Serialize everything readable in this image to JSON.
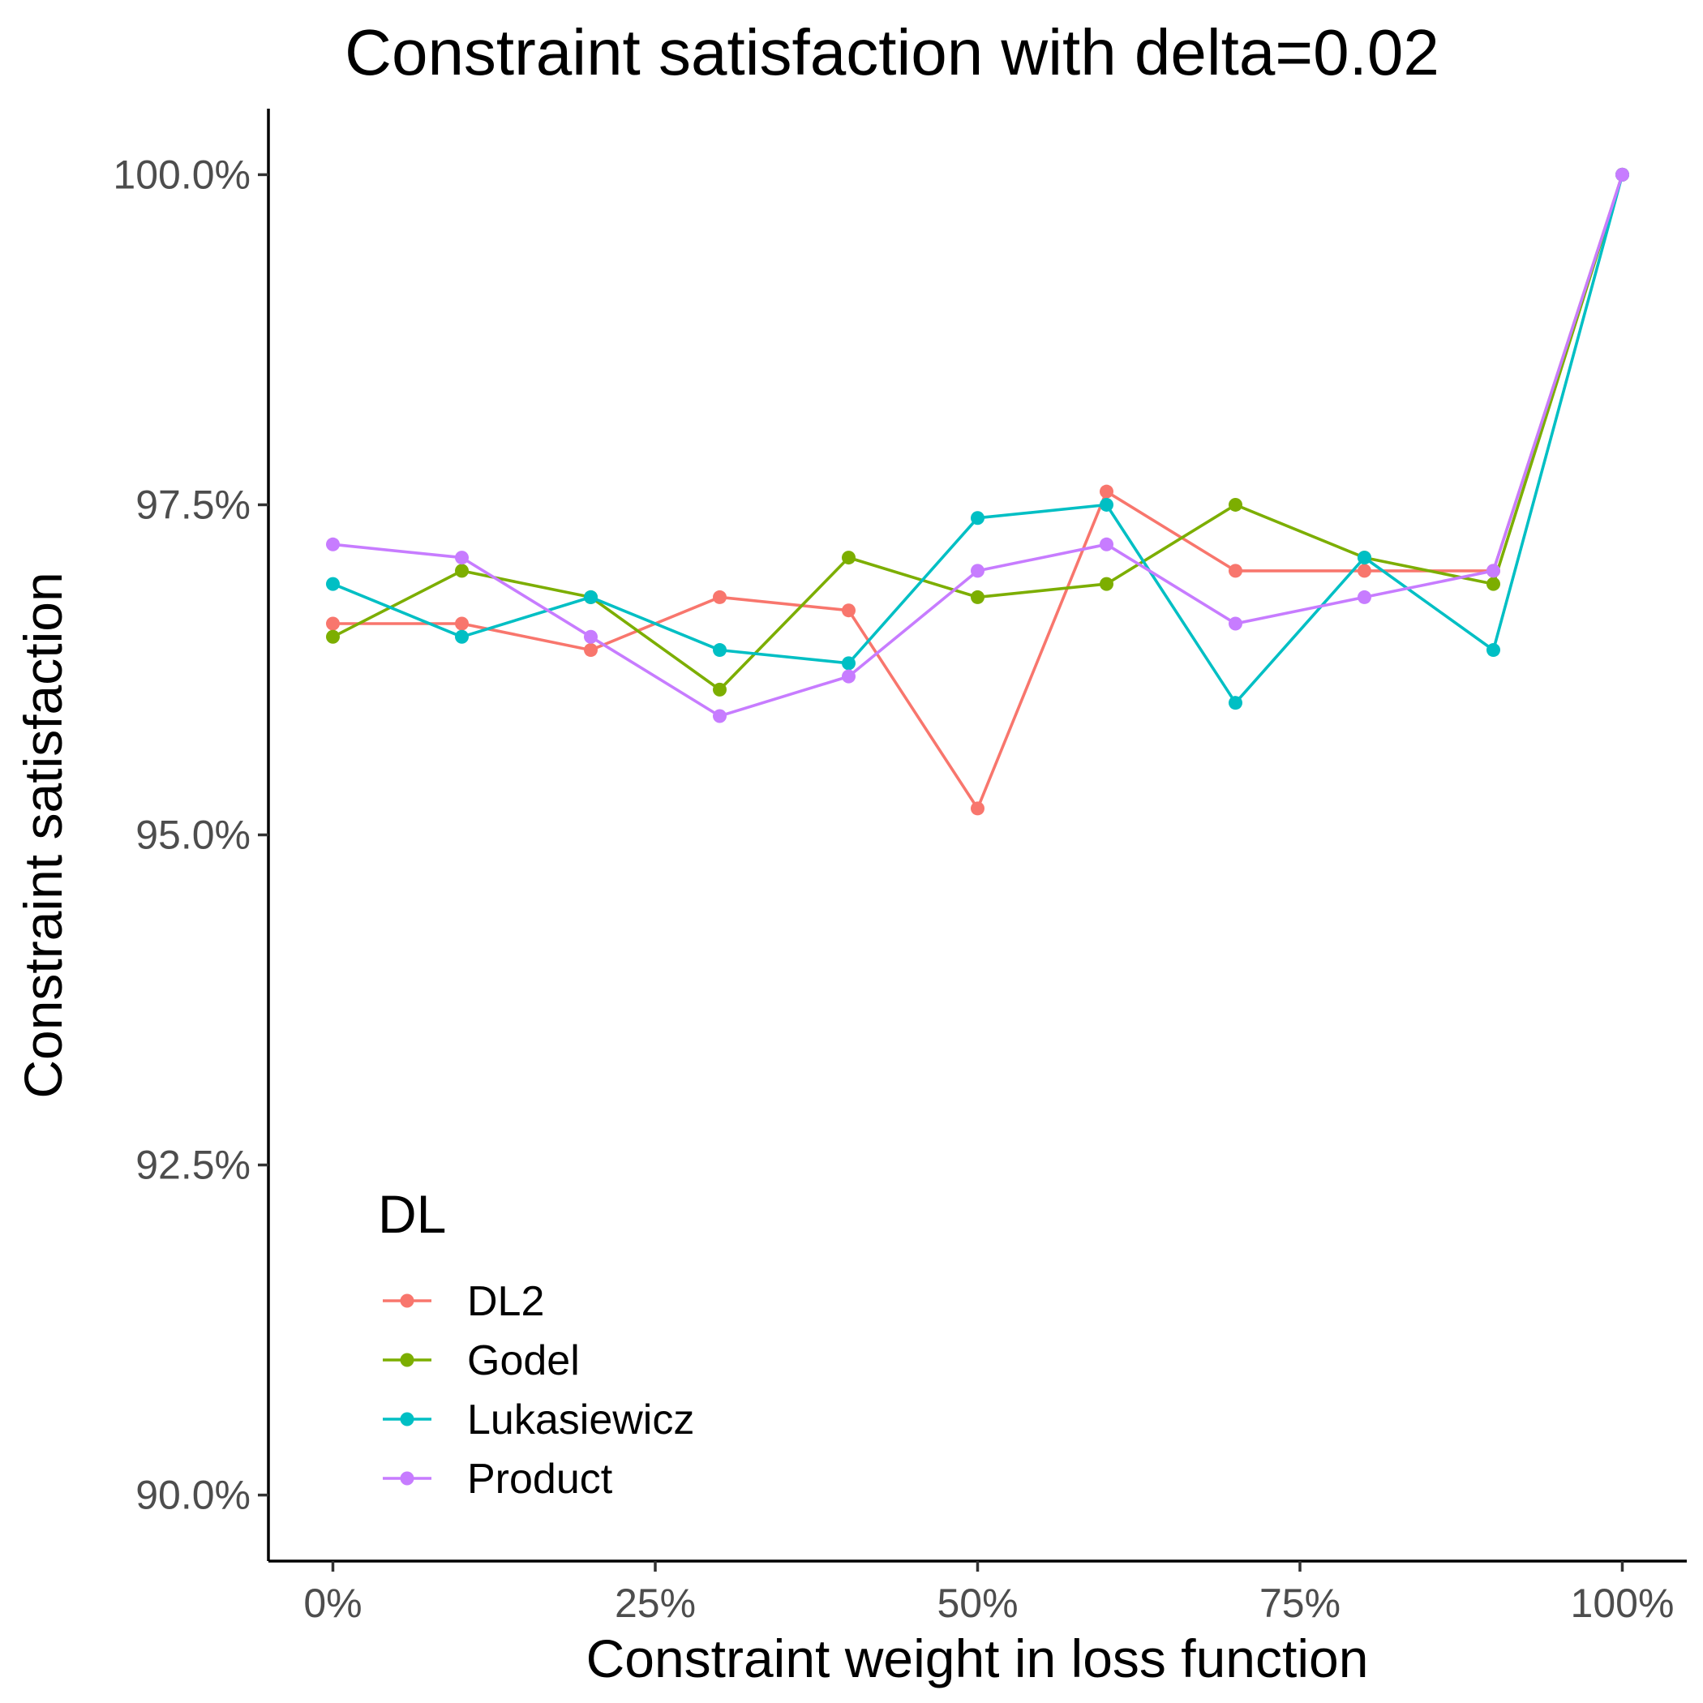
{
  "chart_data": {
    "type": "line",
    "title": "Constraint satisfaction with delta=0.02",
    "xlabel": "Constraint weight in loss function",
    "ylabel": "Constraint satisfaction",
    "xlim": [
      -0.05,
      1.05
    ],
    "ylim": [
      89.5,
      100.5
    ],
    "x_ticks": [
      0,
      0.25,
      0.5,
      0.75,
      1.0
    ],
    "x_tick_labels": [
      "0%",
      "25%",
      "50%",
      "75%",
      "100%"
    ],
    "y_ticks": [
      90,
      92.5,
      95,
      97.5,
      100
    ],
    "y_tick_labels": [
      "90.0%",
      "92.5%",
      "95.0%",
      "97.5%",
      "100.0%"
    ],
    "grid": false,
    "legend": {
      "title": "DL",
      "position": "bottom-left"
    },
    "x": [
      0,
      0.1,
      0.2,
      0.3,
      0.4,
      0.5,
      0.6,
      0.7,
      0.8,
      0.9,
      1.0
    ],
    "series": [
      {
        "name": "DL2",
        "color": "#F8766D",
        "values": [
          96.6,
          96.6,
          96.4,
          96.8,
          96.7,
          95.2,
          97.6,
          97.0,
          97.0,
          97.0,
          100.0
        ]
      },
      {
        "name": "Godel",
        "color": "#7CAE00",
        "values": [
          96.5,
          97.0,
          96.8,
          96.1,
          97.1,
          96.8,
          96.9,
          97.5,
          97.1,
          96.9,
          100.0
        ]
      },
      {
        "name": "Lukasiewicz",
        "color": "#00BFC4",
        "values": [
          96.9,
          96.5,
          96.8,
          96.4,
          96.3,
          97.4,
          97.5,
          96.0,
          97.1,
          96.4,
          100.0
        ]
      },
      {
        "name": "Product",
        "color": "#C77CFF",
        "values": [
          97.2,
          97.1,
          96.5,
          95.9,
          96.2,
          97.0,
          97.2,
          96.6,
          96.8,
          97.0,
          100.0
        ]
      }
    ]
  }
}
